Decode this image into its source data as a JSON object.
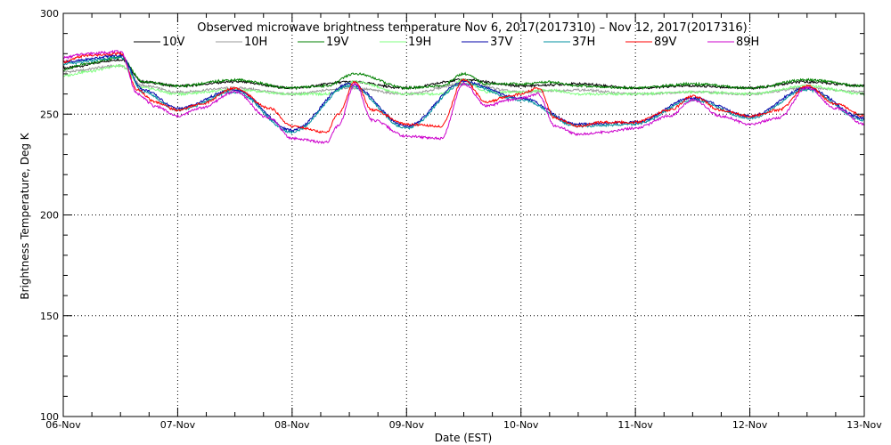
{
  "chart_data": {
    "type": "line",
    "title": "Observed microwave brightness temperature Nov  6, 2017(2017310) – Nov 12, 2017(2017316)",
    "xlabel": "Date (EST)",
    "ylabel": "Brightness Temperature, Deg K",
    "ylim": [
      100,
      300
    ],
    "yticks": [
      "100",
      "150",
      "200",
      "250",
      "300"
    ],
    "xlim": [
      0,
      7
    ],
    "xticks": [
      "06-Nov",
      "07-Nov",
      "08-Nov",
      "09-Nov",
      "10-Nov",
      "11-Nov",
      "12-Nov",
      "13-Nov"
    ],
    "grid": true,
    "legend_position": "top",
    "series": [
      {
        "name": "10V",
        "color": "#000000",
        "x": [
          0,
          0.5,
          0.7,
          1,
          1.5,
          2,
          2.5,
          3,
          3.5,
          4,
          4.5,
          5,
          5.5,
          6,
          6.5,
          7
        ],
        "y": [
          273,
          277,
          266,
          264,
          266,
          263,
          266,
          263,
          267,
          264,
          265,
          263,
          264,
          263,
          266,
          264
        ]
      },
      {
        "name": "10H",
        "color": "#999999",
        "x": [
          0,
          0.5,
          0.7,
          1,
          1.5,
          2,
          2.5,
          3,
          3.5,
          4,
          4.5,
          5,
          5.5,
          6,
          6.5,
          7
        ],
        "y": [
          271,
          274,
          264,
          261,
          263,
          260,
          263,
          260,
          265,
          261,
          262,
          260,
          261,
          260,
          263,
          261
        ]
      },
      {
        "name": "19V",
        "color": "#008000",
        "x": [
          0,
          0.2,
          0.5,
          0.7,
          1,
          1.5,
          2,
          2.3,
          2.55,
          3,
          3.3,
          3.5,
          3.7,
          4,
          4.25,
          4.5,
          5,
          5.5,
          6,
          6.5,
          7
        ],
        "y": [
          272,
          275,
          278,
          266,
          264,
          267,
          263,
          264,
          270,
          263,
          264,
          270,
          265,
          265,
          266,
          264,
          263,
          265,
          263,
          267,
          264
        ]
      },
      {
        "name": "19H",
        "color": "#80ff80",
        "x": [
          0,
          0.2,
          0.5,
          0.7,
          1,
          1.5,
          2,
          2.3,
          2.55,
          3,
          3.3,
          3.5,
          3.7,
          4,
          4.25,
          4.5,
          5,
          5.5,
          6,
          6.5,
          7
        ],
        "y": [
          269,
          271,
          274,
          263,
          260,
          262,
          260,
          260,
          266,
          260,
          260,
          267,
          261,
          261,
          262,
          260,
          260,
          261,
          260,
          264,
          260
        ]
      },
      {
        "name": "37V",
        "color": "#0000aa",
        "x": [
          0,
          0.5,
          0.7,
          1,
          1.5,
          2,
          2.5,
          3,
          3.5,
          4,
          4.5,
          5,
          5.5,
          6,
          6.5,
          7
        ],
        "y": [
          276,
          279,
          262,
          253,
          262,
          242,
          265,
          244,
          266,
          258,
          245,
          246,
          258,
          249,
          263,
          248
        ]
      },
      {
        "name": "37H",
        "color": "#0090a0",
        "x": [
          0,
          0.5,
          0.7,
          1,
          1.5,
          2,
          2.5,
          3,
          3.5,
          4,
          4.5,
          5,
          5.5,
          6,
          6.5,
          7
        ],
        "y": [
          275,
          278,
          261,
          252,
          261,
          241,
          264,
          243,
          265,
          257,
          244,
          245,
          257,
          248,
          262,
          247
        ]
      },
      {
        "name": "89V",
        "color": "#ff0000",
        "x": [
          0,
          0.2,
          0.5,
          0.65,
          0.8,
          1,
          1.2,
          1.5,
          1.8,
          2,
          2.3,
          2.4,
          2.55,
          2.7,
          3,
          3.3,
          3.5,
          3.7,
          3.9,
          4,
          4.15,
          4.3,
          4.5,
          4.7,
          5,
          5.3,
          5.5,
          5.75,
          6,
          6.25,
          6.5,
          6.75,
          7
        ],
        "y": [
          276,
          279,
          280,
          262,
          256,
          252,
          255,
          263,
          253,
          244,
          241,
          250,
          266,
          252,
          245,
          244,
          267,
          256,
          259,
          260,
          263,
          248,
          244,
          246,
          246,
          252,
          259,
          252,
          249,
          252,
          264,
          255,
          249
        ]
      },
      {
        "name": "89H",
        "color": "#cc00cc",
        "x": [
          0,
          0.2,
          0.5,
          0.65,
          0.8,
          1,
          1.2,
          1.5,
          1.8,
          2,
          2.3,
          2.4,
          2.55,
          2.7,
          3,
          3.3,
          3.5,
          3.7,
          3.9,
          4,
          4.15,
          4.3,
          4.5,
          4.7,
          5,
          5.3,
          5.5,
          5.75,
          6,
          6.25,
          6.5,
          6.75,
          7
        ],
        "y": [
          278,
          280,
          281,
          260,
          254,
          249,
          253,
          261,
          248,
          238,
          236,
          244,
          265,
          247,
          239,
          238,
          265,
          254,
          257,
          258,
          260,
          244,
          240,
          241,
          243,
          249,
          257,
          249,
          245,
          248,
          263,
          253,
          245
        ]
      }
    ]
  }
}
